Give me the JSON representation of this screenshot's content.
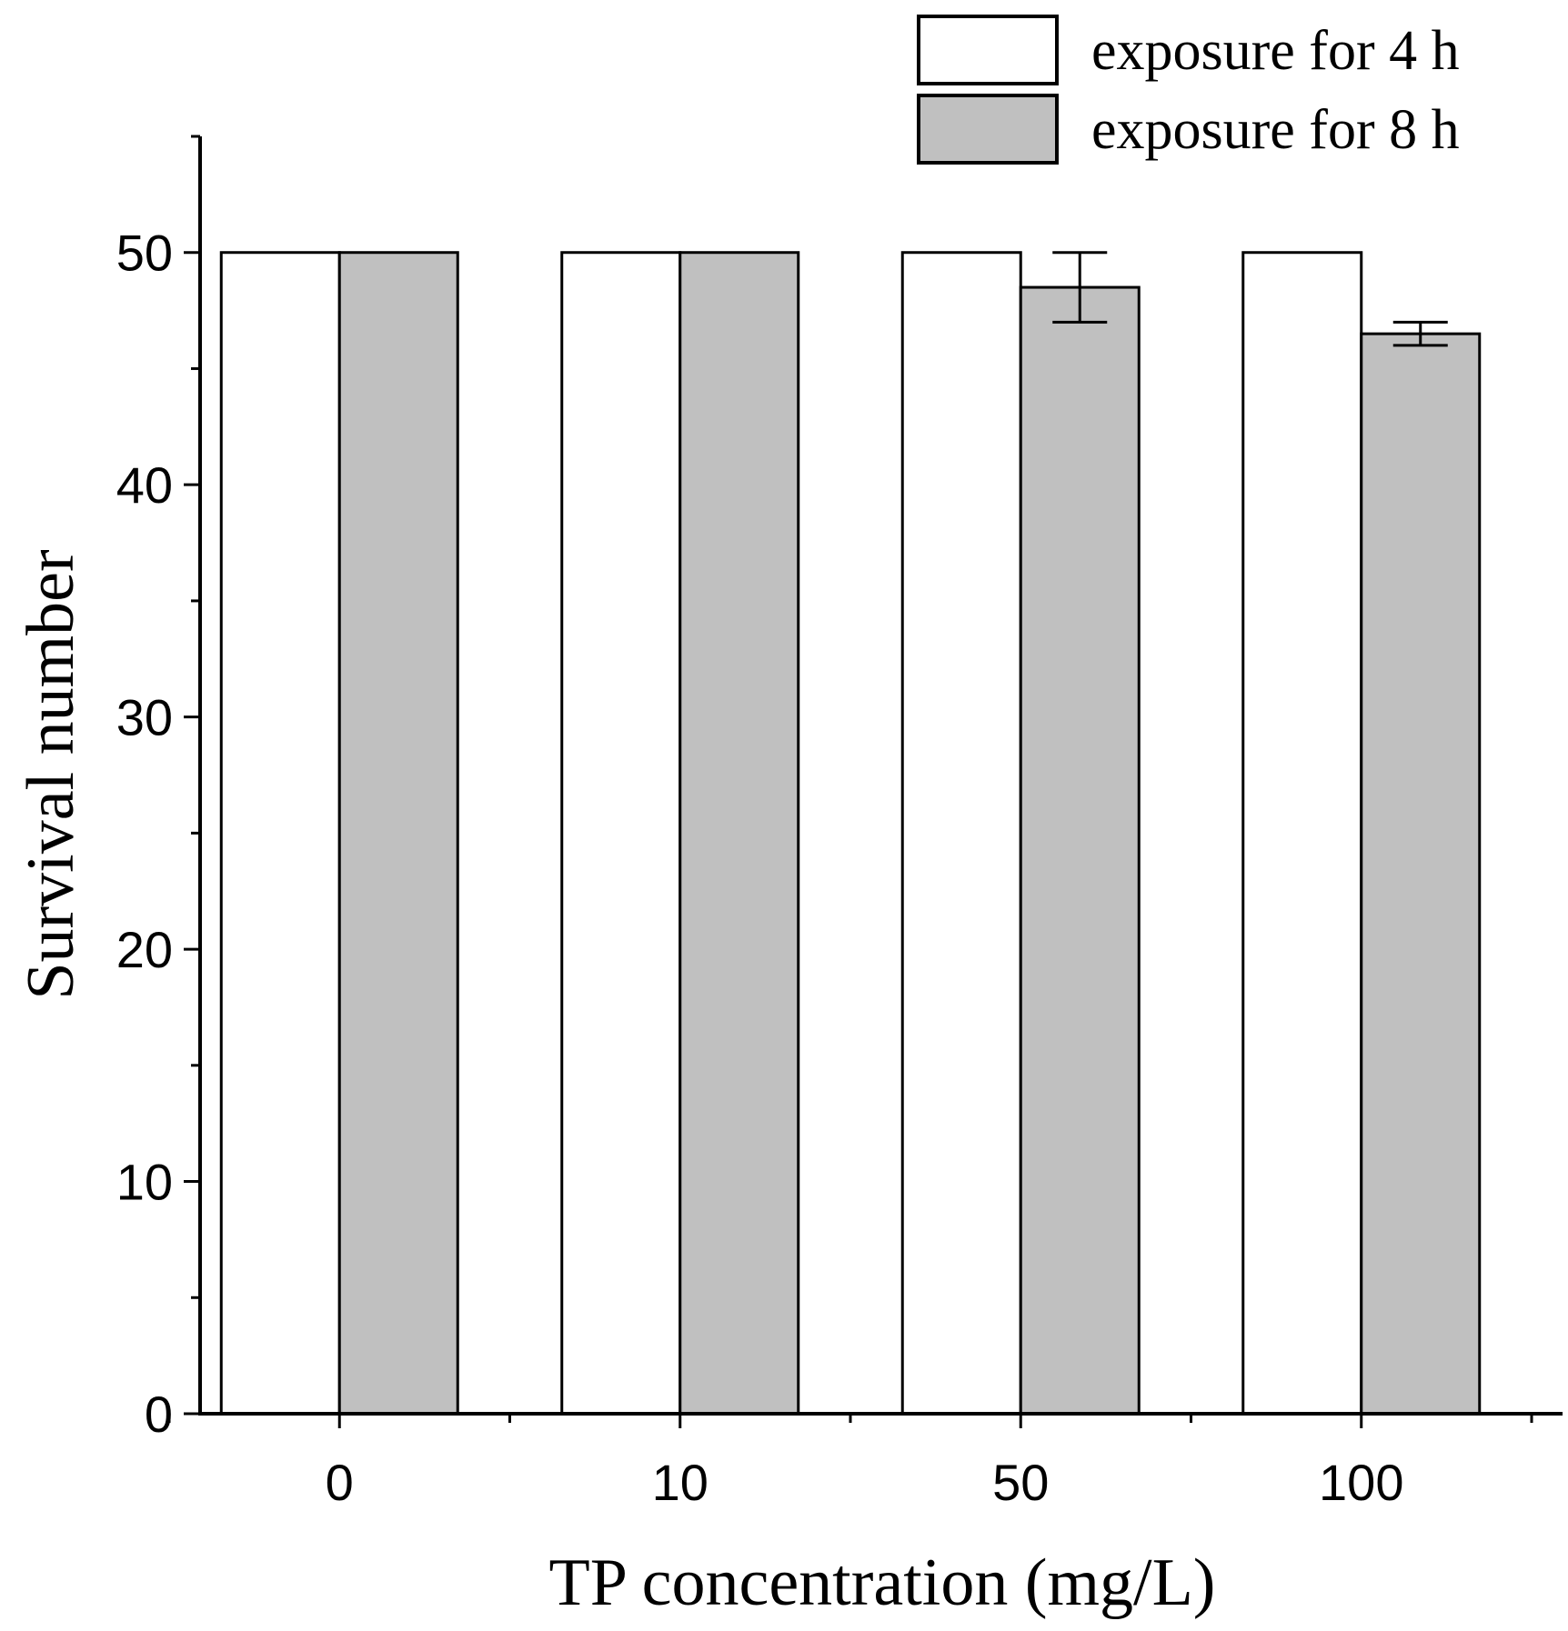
{
  "chart_data": {
    "type": "bar",
    "xlabel": "TP concentration (mg/L)",
    "ylabel": "Survival number",
    "categories": [
      "0",
      "10",
      "50",
      "100"
    ],
    "ylim": [
      0,
      55
    ],
    "yticks": [
      0,
      10,
      20,
      30,
      40,
      50
    ],
    "y_minor_step": 5,
    "grid": false,
    "legend_position": "top-right",
    "series": [
      {
        "name": "exposure for 4 h",
        "color": "#ffffff",
        "values": [
          50,
          50,
          50,
          50
        ],
        "errors": [
          0,
          0,
          0,
          0
        ]
      },
      {
        "name": "exposure for 8 h",
        "color": "#c0c0c0",
        "values": [
          50,
          50,
          48.5,
          46.5
        ],
        "errors": [
          0,
          0,
          1.5,
          0.5
        ]
      }
    ]
  }
}
